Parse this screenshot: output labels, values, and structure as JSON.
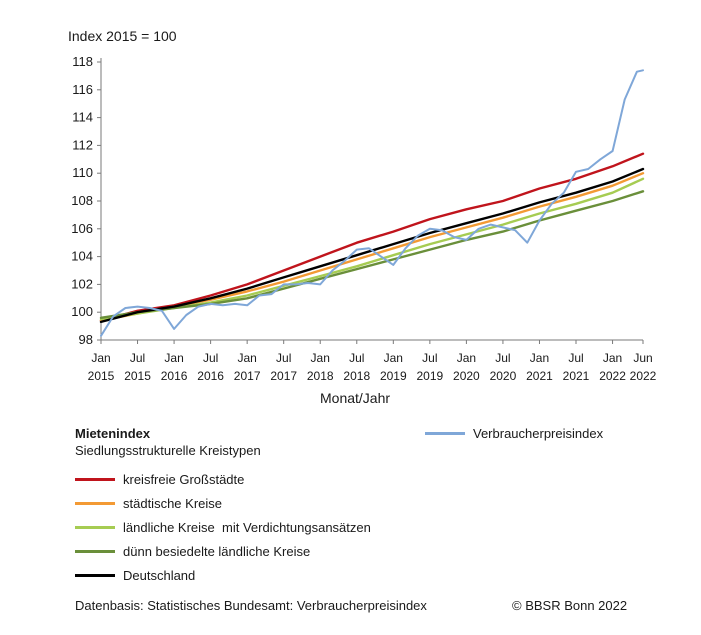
{
  "chart_data": {
    "type": "line",
    "ylabel": "Index 2015 = 100",
    "xlabel": "Monat/Jahr",
    "ylim": [
      98,
      118
    ],
    "yticks": [
      "98",
      "100",
      "102",
      "104",
      "106",
      "108",
      "110",
      "112",
      "114",
      "116",
      "118"
    ],
    "x_range": [
      "2015-01",
      "2022-06"
    ],
    "xticks": [
      {
        "month": "Jan",
        "year": "2015"
      },
      {
        "month": "Jul",
        "year": "2015"
      },
      {
        "month": "Jan",
        "year": "2016"
      },
      {
        "month": "Jul",
        "year": "2016"
      },
      {
        "month": "Jan",
        "year": "2017"
      },
      {
        "month": "Jul",
        "year": "2017"
      },
      {
        "month": "Jan",
        "year": "2018"
      },
      {
        "month": "Jul",
        "year": "2018"
      },
      {
        "month": "Jan",
        "year": "2019"
      },
      {
        "month": "Jul",
        "year": "2019"
      },
      {
        "month": "Jan",
        "year": "2020"
      },
      {
        "month": "Jul",
        "year": "2020"
      },
      {
        "month": "Jan",
        "year": "2021"
      },
      {
        "month": "Jul",
        "year": "2021"
      },
      {
        "month": "Jan",
        "year": "2022"
      },
      {
        "month": "Jun",
        "year": "2022"
      }
    ],
    "grid": false,
    "series": [
      {
        "name": "kreisfreie Großstädte",
        "color": "#c0141c",
        "points": [
          [
            "2015-01",
            99.4
          ],
          [
            "2015-07",
            100.1
          ],
          [
            "2016-01",
            100.5
          ],
          [
            "2016-07",
            101.2
          ],
          [
            "2017-01",
            102.0
          ],
          [
            "2017-07",
            103.0
          ],
          [
            "2018-01",
            104.0
          ],
          [
            "2018-07",
            105.0
          ],
          [
            "2019-01",
            105.8
          ],
          [
            "2019-07",
            106.7
          ],
          [
            "2020-01",
            107.4
          ],
          [
            "2020-07",
            108.0
          ],
          [
            "2021-01",
            108.9
          ],
          [
            "2021-07",
            109.6
          ],
          [
            "2022-01",
            110.5
          ],
          [
            "2022-06",
            111.4
          ]
        ]
      },
      {
        "name": "städtische Kreise",
        "color": "#f39a34",
        "points": [
          [
            "2015-01",
            99.4
          ],
          [
            "2015-07",
            99.9
          ],
          [
            "2016-01",
            100.4
          ],
          [
            "2016-07",
            100.9
          ],
          [
            "2017-01",
            101.5
          ],
          [
            "2017-07",
            102.2
          ],
          [
            "2018-01",
            103.0
          ],
          [
            "2018-07",
            103.8
          ],
          [
            "2019-01",
            104.6
          ],
          [
            "2019-07",
            105.4
          ],
          [
            "2020-01",
            106.1
          ],
          [
            "2020-07",
            106.8
          ],
          [
            "2021-01",
            107.6
          ],
          [
            "2021-07",
            108.3
          ],
          [
            "2022-01",
            109.1
          ],
          [
            "2022-06",
            110.0
          ]
        ]
      },
      {
        "name": "ländliche Kreise  mit Verdichtungsansätzen",
        "color": "#a6cc52",
        "points": [
          [
            "2015-01",
            99.5
          ],
          [
            "2015-07",
            99.9
          ],
          [
            "2016-01",
            100.3
          ],
          [
            "2016-07",
            100.7
          ],
          [
            "2017-01",
            101.2
          ],
          [
            "2017-07",
            101.9
          ],
          [
            "2018-01",
            102.6
          ],
          [
            "2018-07",
            103.3
          ],
          [
            "2019-01",
            104.1
          ],
          [
            "2019-07",
            104.9
          ],
          [
            "2020-01",
            105.6
          ],
          [
            "2020-07",
            106.3
          ],
          [
            "2021-01",
            107.1
          ],
          [
            "2021-07",
            107.8
          ],
          [
            "2022-01",
            108.6
          ],
          [
            "2022-06",
            109.6
          ]
        ]
      },
      {
        "name": "dünn besiedelte ländliche Kreise",
        "color": "#6a8f3a",
        "points": [
          [
            "2015-01",
            99.6
          ],
          [
            "2015-07",
            100.0
          ],
          [
            "2016-01",
            100.3
          ],
          [
            "2016-07",
            100.6
          ],
          [
            "2017-01",
            101.0
          ],
          [
            "2017-07",
            101.7
          ],
          [
            "2018-01",
            102.4
          ],
          [
            "2018-07",
            103.1
          ],
          [
            "2019-01",
            103.8
          ],
          [
            "2019-07",
            104.5
          ],
          [
            "2020-01",
            105.2
          ],
          [
            "2020-07",
            105.8
          ],
          [
            "2021-01",
            106.6
          ],
          [
            "2021-07",
            107.3
          ],
          [
            "2022-01",
            108.0
          ],
          [
            "2022-06",
            108.7
          ]
        ]
      },
      {
        "name": "Deutschland",
        "color": "#000000",
        "points": [
          [
            "2015-01",
            99.3
          ],
          [
            "2015-07",
            100.0
          ],
          [
            "2016-01",
            100.4
          ],
          [
            "2016-07",
            101.0
          ],
          [
            "2017-01",
            101.7
          ],
          [
            "2017-07",
            102.5
          ],
          [
            "2018-01",
            103.3
          ],
          [
            "2018-07",
            104.1
          ],
          [
            "2019-01",
            104.9
          ],
          [
            "2019-07",
            105.7
          ],
          [
            "2020-01",
            106.4
          ],
          [
            "2020-07",
            107.1
          ],
          [
            "2021-01",
            107.9
          ],
          [
            "2021-07",
            108.6
          ],
          [
            "2022-01",
            109.4
          ],
          [
            "2022-06",
            110.3
          ]
        ]
      },
      {
        "name": "Verbraucherpreisindex",
        "color": "#7fa7d8",
        "points": [
          [
            "2015-01",
            98.3
          ],
          [
            "2015-03",
            99.7
          ],
          [
            "2015-05",
            100.3
          ],
          [
            "2015-07",
            100.4
          ],
          [
            "2015-09",
            100.3
          ],
          [
            "2015-11",
            100.1
          ],
          [
            "2016-01",
            98.8
          ],
          [
            "2016-03",
            99.8
          ],
          [
            "2016-05",
            100.4
          ],
          [
            "2016-07",
            100.6
          ],
          [
            "2016-09",
            100.5
          ],
          [
            "2016-11",
            100.6
          ],
          [
            "2017-01",
            100.5
          ],
          [
            "2017-03",
            101.2
          ],
          [
            "2017-05",
            101.3
          ],
          [
            "2017-07",
            102.0
          ],
          [
            "2017-09",
            102.0
          ],
          [
            "2017-11",
            102.1
          ],
          [
            "2018-01",
            102.0
          ],
          [
            "2018-03",
            103.0
          ],
          [
            "2018-05",
            103.7
          ],
          [
            "2018-07",
            104.5
          ],
          [
            "2018-09",
            104.6
          ],
          [
            "2018-11",
            104.0
          ],
          [
            "2019-01",
            103.4
          ],
          [
            "2019-03",
            104.6
          ],
          [
            "2019-05",
            105.5
          ],
          [
            "2019-07",
            106.0
          ],
          [
            "2019-09",
            105.9
          ],
          [
            "2019-11",
            105.4
          ],
          [
            "2020-01",
            105.2
          ],
          [
            "2020-03",
            106.0
          ],
          [
            "2020-05",
            106.3
          ],
          [
            "2020-07",
            106.1
          ],
          [
            "2020-09",
            105.9
          ],
          [
            "2020-11",
            105.0
          ],
          [
            "2021-01",
            106.6
          ],
          [
            "2021-03",
            107.8
          ],
          [
            "2021-05",
            108.6
          ],
          [
            "2021-07",
            110.1
          ],
          [
            "2021-09",
            110.3
          ],
          [
            "2021-11",
            111.0
          ],
          [
            "2022-01",
            111.6
          ],
          [
            "2022-03",
            115.3
          ],
          [
            "2022-05",
            117.3
          ],
          [
            "2022-06",
            117.4
          ]
        ]
      }
    ]
  },
  "legend": {
    "heading": "Mietenindex",
    "subheading": "Siedlungsstrukturelle Kreistypen"
  },
  "footer": {
    "source": "Datenbasis: Statistisches Bundesamt: Verbraucherpreisindex",
    "copyright": "© BBSR Bonn 2022"
  }
}
